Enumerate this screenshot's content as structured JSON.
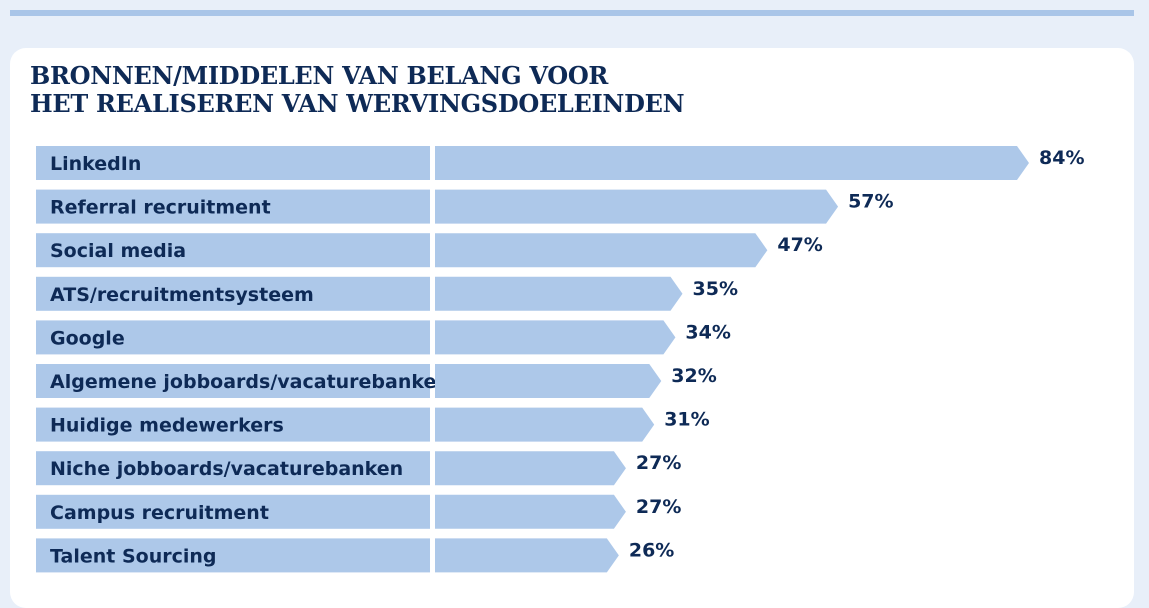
{
  "colors": {
    "background": "#e8eff9",
    "card": "#ffffff",
    "bar": "#adc8e9",
    "text": "#0e2a56"
  },
  "chart_data": {
    "type": "bar",
    "orientation": "horizontal",
    "title": "BRONNEN/MIDDELEN VAN BELANG VOOR HET REALISEREN VAN WERVINGSDOELEINDEN",
    "title_lines": [
      "BRONNEN/MIDDELEN VAN BELANG VOOR",
      "HET REALISEREN VAN WERVINGSDOELEINDEN"
    ],
    "categories": [
      "LinkedIn",
      "Referral recruitment",
      "Social media",
      "ATS/recruitmentsysteem",
      "Google",
      "Algemene jobboards/vacaturebanken",
      "Huidige medewerkers",
      "Niche jobboards/vacaturebanken",
      "Campus recruitment",
      "Talent Sourcing"
    ],
    "values": [
      84,
      57,
      47,
      35,
      34,
      32,
      31,
      27,
      27,
      26
    ],
    "value_labels": [
      "84%",
      "57%",
      "47%",
      "35%",
      "34%",
      "32%",
      "31%",
      "27%",
      "27%",
      "26%"
    ],
    "unit": "%",
    "xlim": [
      0,
      100
    ],
    "grid": false,
    "legend": "none"
  }
}
